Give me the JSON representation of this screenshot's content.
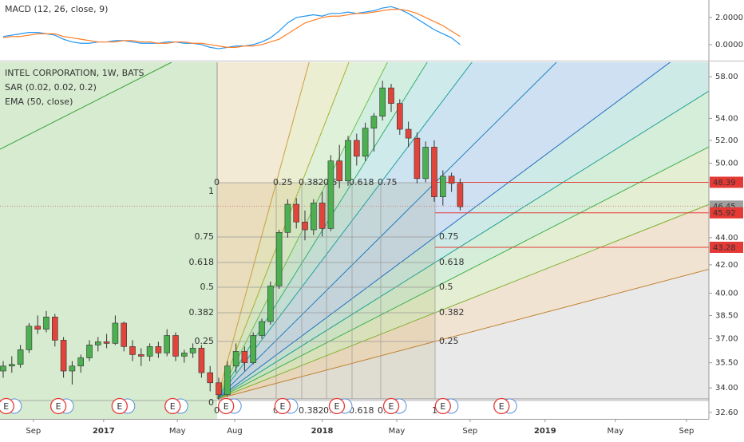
{
  "chart_data": [
    {
      "type": "candlestick",
      "title": "INTEL CORPORATION, 1W, BATS",
      "indicators": [
        "SAR (0.02, 0.02, 0.2)",
        "EMA (50, close)"
      ],
      "x": [
        0,
        2,
        4,
        6,
        8,
        10,
        12,
        14,
        16,
        18,
        20,
        22,
        24,
        26,
        28,
        30,
        32,
        34,
        36,
        38,
        40,
        42,
        44,
        46,
        48,
        50,
        52,
        54,
        56,
        58,
        60,
        62,
        64,
        66,
        68,
        70,
        72,
        74,
        76,
        78,
        80,
        82,
        84,
        86,
        88,
        90,
        92,
        94,
        96,
        98,
        100,
        102,
        104,
        106
      ],
      "open": [
        35.0,
        35.3,
        35.4,
        36.3,
        37.8,
        37.6,
        38.4,
        36.9,
        35.0,
        35.3,
        35.8,
        36.6,
        36.8,
        36.7,
        38.0,
        36.5,
        36.0,
        35.9,
        36.5,
        36.1,
        37.2,
        35.9,
        36.1,
        36.4,
        34.9,
        34.3,
        33.6,
        35.3,
        36.2,
        35.5,
        37.2,
        38.1,
        40.5,
        44.4,
        46.6,
        45.2,
        44.6,
        46.7,
        44.7,
        50.2,
        48.5,
        52.0,
        50.6,
        53.1,
        54.2,
        56.9,
        55.4,
        53.0,
        52.2,
        48.7,
        51.4,
        47.2,
        48.9,
        48.3
      ],
      "high": [
        35.6,
        35.9,
        36.6,
        38.0,
        38.5,
        38.8,
        38.6,
        37.1,
        35.6,
        36.0,
        36.9,
        37.1,
        37.3,
        38.5,
        38.1,
        36.9,
        36.4,
        36.7,
        36.8,
        37.6,
        37.4,
        36.3,
        36.7,
        36.6,
        35.3,
        34.6,
        35.6,
        36.7,
        36.5,
        37.4,
        38.3,
        40.8,
        44.6,
        47.0,
        47.1,
        46.1,
        47.0,
        47.6,
        50.7,
        51.6,
        52.4,
        52.6,
        53.6,
        54.5,
        57.6,
        57.3,
        55.8,
        53.7,
        52.7,
        51.9,
        52.0,
        49.4,
        49.2,
        48.7
      ],
      "low": [
        34.6,
        34.9,
        35.2,
        36.1,
        37.3,
        37.4,
        36.5,
        34.6,
        34.2,
        34.9,
        35.6,
        36.2,
        36.4,
        36.6,
        36.2,
        35.6,
        35.3,
        35.6,
        35.8,
        35.9,
        35.6,
        35.5,
        35.8,
        34.6,
        33.8,
        33.3,
        33.5,
        34.9,
        35.0,
        35.4,
        37.0,
        37.9,
        40.3,
        44.0,
        44.7,
        43.8,
        44.2,
        44.1,
        44.5,
        47.9,
        48.1,
        49.8,
        50.2,
        51.0,
        53.8,
        54.6,
        52.5,
        51.4,
        48.3,
        48.4,
        46.8,
        46.5,
        47.6,
        46.1
      ],
      "close": [
        35.3,
        35.4,
        36.3,
        37.8,
        37.6,
        38.4,
        36.9,
        35.0,
        35.3,
        35.8,
        36.6,
        36.8,
        36.7,
        38.0,
        36.5,
        36.0,
        35.9,
        36.5,
        36.1,
        37.2,
        35.9,
        36.1,
        36.4,
        34.9,
        34.3,
        33.6,
        35.3,
        36.2,
        35.5,
        37.2,
        38.1,
        40.5,
        44.4,
        46.6,
        45.2,
        44.6,
        46.7,
        44.7,
        50.2,
        48.5,
        52.0,
        50.6,
        53.1,
        54.2,
        56.9,
        55.4,
        53.0,
        52.2,
        48.7,
        51.4,
        47.2,
        48.9,
        48.3,
        46.4
      ],
      "up_color": "#4caf50",
      "down_color": "#e0443a",
      "log_scale": true,
      "xlim": [
        -0.74,
        163.7
      ],
      "xticks": [
        {
          "value": 7,
          "label": "Sep"
        },
        {
          "value": 23.3,
          "label": "2017"
        },
        {
          "value": 40.4,
          "label": "May"
        },
        {
          "value": 53.7,
          "label": "Aug"
        },
        {
          "value": 74,
          "label": "2018"
        },
        {
          "value": 91.3,
          "label": "May"
        },
        {
          "value": 108.3,
          "label": "Sep"
        },
        {
          "value": 125.7,
          "label": "2019"
        },
        {
          "value": 142,
          "label": "May"
        },
        {
          "value": 158.5,
          "label": "Sep"
        }
      ],
      "ylim": [
        32.24,
        59.3
      ],
      "yticks": [
        {
          "value": 58,
          "label": "58.00"
        },
        {
          "value": 54,
          "label": "54.00"
        },
        {
          "value": 52,
          "label": "52.00"
        },
        {
          "value": 50,
          "label": "50.00"
        },
        {
          "value": 44,
          "label": "44.00"
        },
        {
          "value": 42,
          "label": "42.00"
        },
        {
          "value": 40,
          "label": "40.00"
        },
        {
          "value": 38.5,
          "label": "38.50"
        },
        {
          "value": 37,
          "label": "37.00"
        },
        {
          "value": 35.5,
          "label": "35.50"
        },
        {
          "value": 34,
          "label": "34.00"
        },
        {
          "value": 32.6,
          "label": "32.60"
        }
      ],
      "price_lines": [
        {
          "value": 48.39,
          "color": "#e53935"
        },
        {
          "value": 46.45,
          "color": "#9e9e9e"
        },
        {
          "value": 45.92,
          "color": "#e53935"
        },
        {
          "value": 43.28,
          "color": "#e53935"
        }
      ],
      "events": [
        {
          "x": 0.7,
          "label": "E"
        },
        {
          "x": 12.8,
          "label": "E"
        },
        {
          "x": 27,
          "label": "E"
        },
        {
          "x": 39.3,
          "label": "E"
        },
        {
          "x": 51.7,
          "label": "E"
        },
        {
          "x": 64.8,
          "label": "E"
        },
        {
          "x": 77.4,
          "label": "E"
        },
        {
          "x": 90,
          "label": "E"
        },
        {
          "x": 102,
          "label": "E"
        },
        {
          "x": 115.6,
          "label": "E"
        }
      ],
      "fib_labels": [
        "0",
        "0.25",
        "0.382",
        "0.5",
        "0.618",
        "0.75",
        "1"
      ]
    },
    {
      "type": "line",
      "title": "MACD (12, 26, close, 9)",
      "x": [
        0,
        2,
        4,
        6,
        8,
        10,
        12,
        14,
        16,
        18,
        20,
        22,
        24,
        26,
        28,
        30,
        32,
        34,
        36,
        38,
        40,
        42,
        44,
        46,
        48,
        50,
        52,
        54,
        56,
        58,
        60,
        62,
        64,
        66,
        68,
        70,
        72,
        74,
        76,
        78,
        80,
        82,
        84,
        86,
        88,
        90,
        92,
        94,
        96,
        98,
        100,
        102,
        104,
        106
      ],
      "series": [
        {
          "color": "#2196f3",
          "values": [
            0.6,
            0.7,
            0.8,
            0.9,
            0.9,
            0.8,
            0.7,
            0.4,
            0.2,
            0.1,
            0.1,
            0.2,
            0.2,
            0.3,
            0.3,
            0.2,
            0.1,
            0.1,
            0.1,
            0.2,
            0.2,
            0.1,
            0.1,
            0.0,
            -0.2,
            -0.3,
            -0.2,
            -0.1,
            -0.1,
            0.0,
            0.2,
            0.5,
            1.0,
            1.6,
            2.0,
            2.1,
            2.2,
            2.1,
            2.3,
            2.3,
            2.4,
            2.3,
            2.4,
            2.5,
            2.7,
            2.8,
            2.6,
            2.3,
            1.9,
            1.5,
            1.1,
            0.8,
            0.5,
            0.0
          ]
        },
        {
          "color": "#ff7f27",
          "values": [
            0.5,
            0.6,
            0.6,
            0.7,
            0.8,
            0.8,
            0.8,
            0.6,
            0.5,
            0.4,
            0.3,
            0.2,
            0.2,
            0.2,
            0.3,
            0.3,
            0.2,
            0.2,
            0.1,
            0.1,
            0.2,
            0.2,
            0.1,
            0.1,
            0.0,
            -0.1,
            -0.2,
            -0.2,
            -0.1,
            -0.1,
            0.0,
            0.2,
            0.4,
            0.8,
            1.2,
            1.6,
            1.8,
            2.0,
            2.1,
            2.1,
            2.2,
            2.3,
            2.3,
            2.4,
            2.5,
            2.6,
            2.6,
            2.5,
            2.3,
            2.0,
            1.7,
            1.4,
            1.0,
            0.6
          ]
        }
      ],
      "ylim": [
        -1.12,
        3.29
      ],
      "yticks": [
        {
          "value": 2,
          "label": "2.0000"
        },
        {
          "value": 0,
          "label": "0.0000"
        }
      ]
    }
  ]
}
